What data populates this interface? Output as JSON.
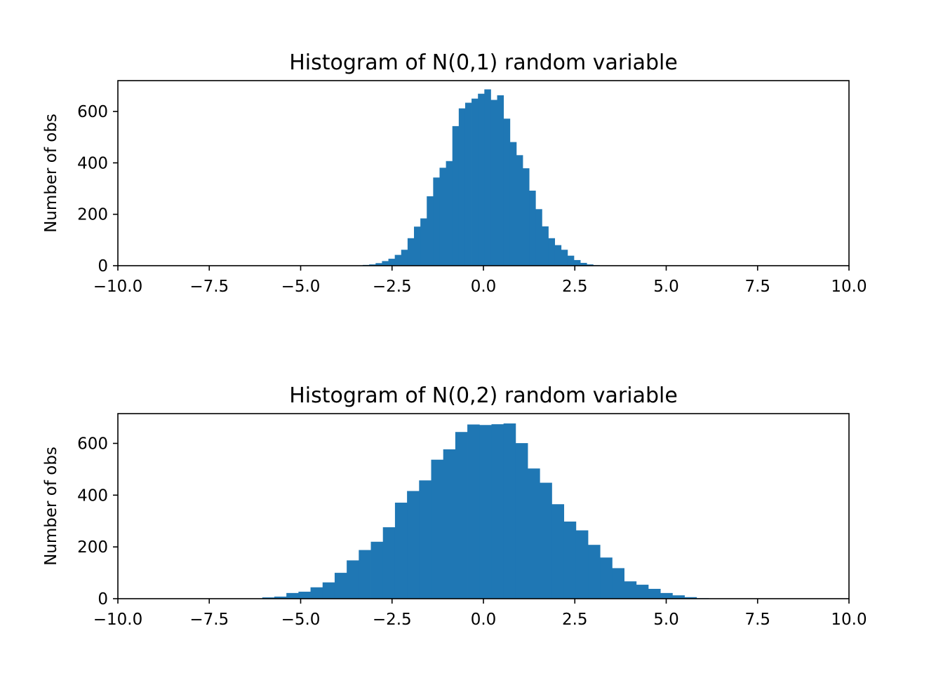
{
  "chart_data": [
    {
      "type": "bar",
      "title": "Histogram of N(0,1) random variable",
      "xlabel": "",
      "ylabel": "Number of obs",
      "xlim": [
        -10,
        10
      ],
      "ylim": [
        0,
        720
      ],
      "xticks": [
        "−10.0",
        "−7.5",
        "−5.0",
        "−2.5",
        "0.0",
        "2.5",
        "5.0",
        "7.5",
        "10.0"
      ],
      "yticks": [
        "0",
        "200",
        "400",
        "600"
      ],
      "bin_start": -3.3,
      "bin_width": 0.175,
      "values": [
        3,
        5,
        10,
        18,
        27,
        42,
        62,
        107,
        152,
        184,
        270,
        343,
        381,
        407,
        543,
        612,
        634,
        650,
        669,
        686,
        645,
        663,
        572,
        481,
        430,
        379,
        292,
        220,
        153,
        107,
        80,
        62,
        39,
        22,
        11,
        5,
        2
      ],
      "color": "#1f77b4",
      "grid": false
    },
    {
      "type": "bar",
      "title": "Histogram of N(0,2) random variable",
      "xlabel": "",
      "ylabel": "Number of obs",
      "xlim": [
        -10,
        10
      ],
      "ylim": [
        0,
        715
      ],
      "xticks": [
        "−10.0",
        "−7.5",
        "−5.0",
        "−2.5",
        "0.0",
        "2.5",
        "5.0",
        "7.5",
        "10.0"
      ],
      "yticks": [
        "0",
        "200",
        "400",
        "600"
      ],
      "bin_start": -6.05,
      "bin_width": 0.33,
      "values": [
        5,
        8,
        22,
        27,
        44,
        63,
        100,
        148,
        188,
        220,
        276,
        371,
        416,
        457,
        537,
        577,
        644,
        673,
        671,
        674,
        677,
        601,
        503,
        448,
        365,
        298,
        264,
        208,
        159,
        118,
        67,
        54,
        38,
        22,
        13,
        6,
        2
      ],
      "color": "#1f77b4",
      "grid": false
    }
  ]
}
